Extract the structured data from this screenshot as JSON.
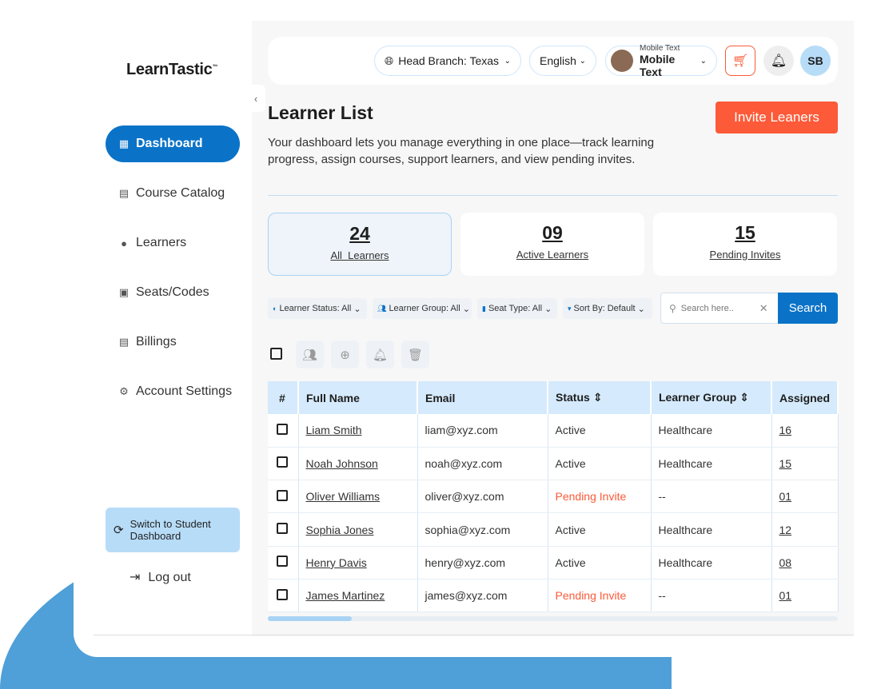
{
  "app": {
    "logo": "LearnTastic",
    "logo_tm": "™"
  },
  "sidebar": {
    "items": [
      {
        "label": "Dashboard",
        "icon": "grid-icon",
        "active": true
      },
      {
        "label": "Course Catalog",
        "icon": "list-icon"
      },
      {
        "label": "Learners",
        "icon": "user-icon"
      },
      {
        "label": "Seats/Codes",
        "icon": "badge-icon"
      },
      {
        "label": "Billings",
        "icon": "document-icon"
      },
      {
        "label": "Account Settings",
        "icon": "gear-icon"
      }
    ],
    "switch_label": "Switch to Student Dashboard",
    "logout_label": "Log out"
  },
  "topbar": {
    "branch": "Head Branch: Texas",
    "language": "English",
    "profile_small": "Mobile Text",
    "profile_name": "Mobile Text",
    "avatar_initials": "SB"
  },
  "page": {
    "title": "Learner List",
    "description": "Your dashboard lets you manage everything in one place—track learning progress, assign courses, support learners, and view pending invites.",
    "invite_label": "Invite Leaners"
  },
  "stats": [
    {
      "value": "24",
      "label": "All  Learners"
    },
    {
      "value": "09",
      "label": "Active Learners"
    },
    {
      "value": "15",
      "label": "Pending Invites"
    }
  ],
  "filters": [
    "Learner Status: All",
    "Learner Group: All",
    "Seat Type: All",
    "Sort By: Default"
  ],
  "search": {
    "placeholder": "Search here..",
    "button": "Search"
  },
  "table": {
    "headers": [
      "#",
      "Full Name",
      "Email",
      "Status",
      "Learner Group",
      "Assigned"
    ],
    "rows": [
      {
        "name": "Liam Smith",
        "email": "liam@xyz.com",
        "status": "Active",
        "group": "Healthcare",
        "assigned": "16"
      },
      {
        "name": "Noah Johnson",
        "email": "noah@xyz.com",
        "status": "Active",
        "group": "Healthcare",
        "assigned": "15"
      },
      {
        "name": "Oliver Williams",
        "email": "oliver@xyz.com",
        "status": "Pending Invite",
        "group": "--",
        "assigned": "01"
      },
      {
        "name": "Sophia Jones",
        "email": "sophia@xyz.com",
        "status": "Active",
        "group": "Healthcare",
        "assigned": "12"
      },
      {
        "name": "Henry Davis",
        "email": "henry@xyz.com",
        "status": "Active",
        "group": "Healthcare",
        "assigned": "08"
      },
      {
        "name": "James Martinez",
        "email": "james@xyz.com",
        "status": "Pending Invite",
        "group": "--",
        "assigned": "01"
      }
    ]
  },
  "colors": {
    "primary": "#0a73c8",
    "accent": "#fc5a38",
    "header_bg": "#d5eafc"
  }
}
